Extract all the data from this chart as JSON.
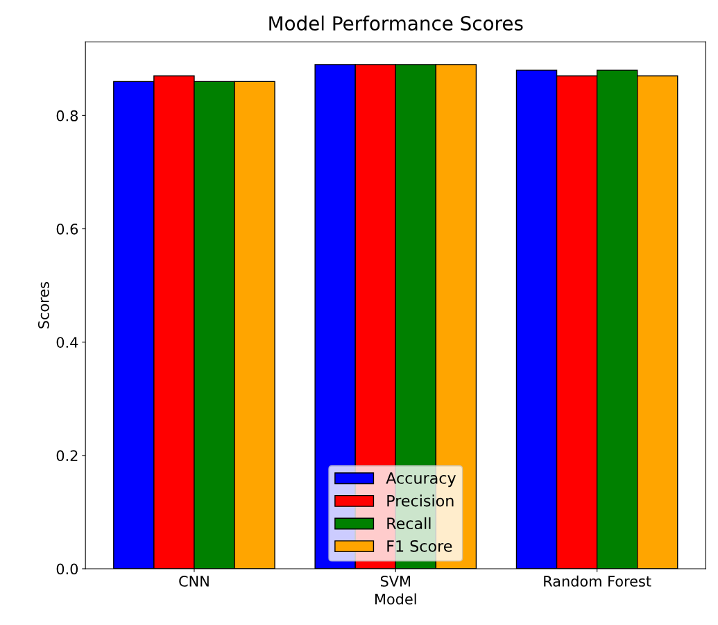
{
  "chart_data": {
    "type": "bar",
    "title": "Model Performance Scores",
    "xlabel": "Model",
    "ylabel": "Scores",
    "categories": [
      "CNN",
      "SVM",
      "Random Forest"
    ],
    "series": [
      {
        "name": "Accuracy",
        "color": "#0000ff",
        "values": [
          0.86,
          0.89,
          0.88
        ]
      },
      {
        "name": "Precision",
        "color": "#ff0000",
        "values": [
          0.87,
          0.89,
          0.87
        ]
      },
      {
        "name": "Recall",
        "color": "#008000",
        "values": [
          0.86,
          0.89,
          0.88
        ]
      },
      {
        "name": "F1 Score",
        "color": "#ffa500",
        "values": [
          0.86,
          0.89,
          0.87
        ]
      }
    ],
    "ylim": [
      0,
      0.93
    ],
    "yticks": [
      {
        "value": 0,
        "label": "0.0"
      },
      {
        "value": 0.2,
        "label": "0.2"
      },
      {
        "value": 0.4,
        "label": "0.4"
      },
      {
        "value": 0.6,
        "label": "0.6"
      },
      {
        "value": 0.8,
        "label": "0.8"
      }
    ],
    "legend": "bottom",
    "grid": false
  }
}
